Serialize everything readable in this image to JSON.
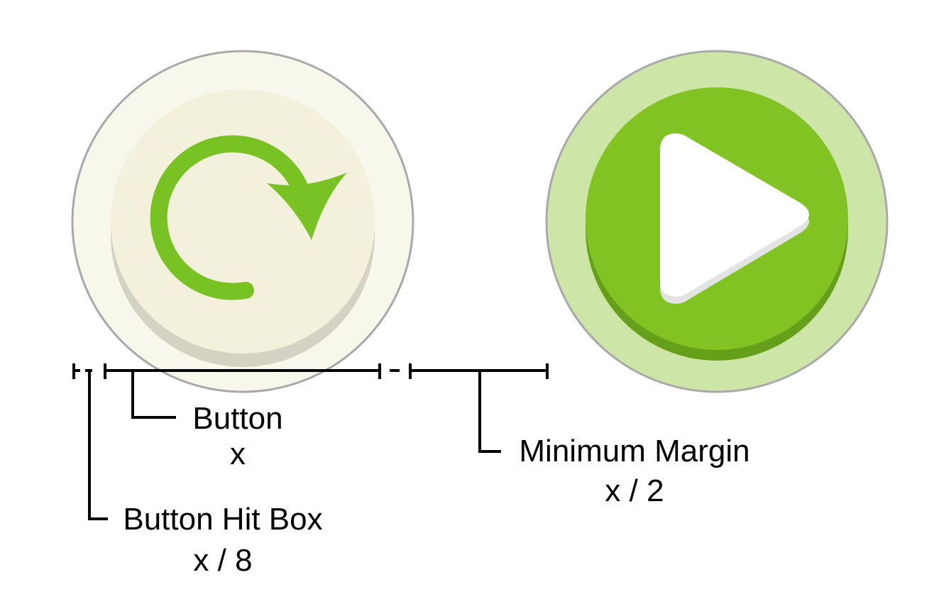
{
  "colors": {
    "replay_outer_ring": "#f8f7ec",
    "replay_button_face": "#f3f1db",
    "replay_button_shadow": "#d4d2c2",
    "replay_arrow": "#79c224",
    "play_outer_ring": "#cde6a8",
    "play_button_face": "#80c322",
    "play_button_shadow": "#66a01a",
    "play_triangle": "#ffffff",
    "play_triangle_shadow": "#e3e3e3",
    "ring_stroke": "#a9a9a9",
    "dimension_line": "#000000"
  },
  "icons": {
    "replay": "circular-arrow-icon",
    "play": "play-triangle-icon"
  },
  "labels": {
    "button_name": "Button",
    "button_value": "x",
    "hitbox_name": "Button Hit Box",
    "hitbox_value": "x / 8",
    "margin_name": "Minimum Margin",
    "margin_value": "x / 2"
  }
}
